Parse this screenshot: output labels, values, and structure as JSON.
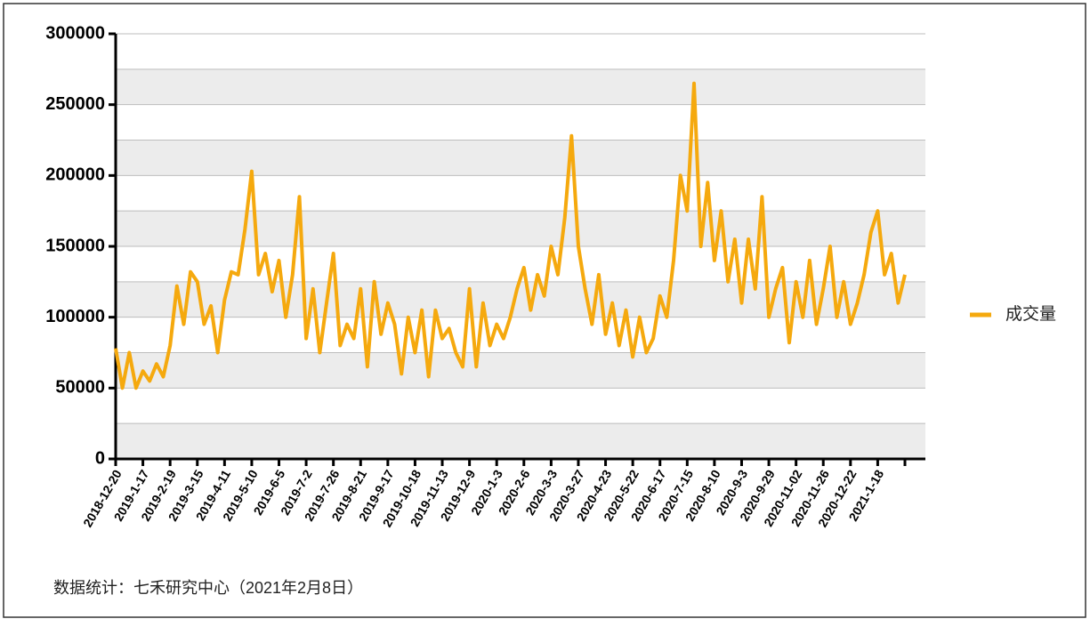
{
  "chart_data": {
    "type": "line",
    "footnote": "数据统计：七禾研究中心（2021年2月8日）",
    "categories": [
      "2018-12-20",
      null,
      null,
      null,
      "2019-1-17",
      null,
      null,
      null,
      "2019-2-19",
      null,
      null,
      null,
      "2019-3-15",
      null,
      null,
      null,
      "2019-4-11",
      null,
      null,
      null,
      "2019-5-10",
      null,
      null,
      null,
      "2019-6-5",
      null,
      null,
      null,
      "2019-7-2",
      null,
      null,
      null,
      "2019-7-26",
      null,
      null,
      null,
      "2019-8-21",
      null,
      null,
      null,
      "2019-9-17",
      null,
      null,
      null,
      "2019-10-18",
      null,
      null,
      null,
      "2019-11-13",
      null,
      null,
      null,
      "2019-12-9",
      null,
      null,
      null,
      "2020-1-3",
      null,
      null,
      null,
      "2020-2-6",
      null,
      null,
      null,
      "2020-3-3",
      null,
      null,
      null,
      "2020-3-27",
      null,
      null,
      null,
      "2020-4-23",
      null,
      null,
      null,
      "2020-5-22",
      null,
      null,
      null,
      "2020-6-17",
      null,
      null,
      null,
      "2020-7-15",
      null,
      null,
      null,
      "2020-8-10",
      null,
      null,
      null,
      "2020-9-3",
      null,
      null,
      null,
      "2020-9-29",
      null,
      null,
      null,
      "2020-11-02",
      null,
      null,
      null,
      "2020-11-26",
      null,
      null,
      null,
      "2020-12-22",
      null,
      null,
      null,
      "2021-1-18",
      null,
      null,
      null,
      null
    ],
    "series": [
      {
        "name": "成交量",
        "color": "#f5a90e",
        "values": [
          78000,
          50000,
          75000,
          50000,
          62000,
          55000,
          67000,
          58000,
          80000,
          122000,
          95000,
          132000,
          125000,
          95000,
          108000,
          75000,
          112000,
          132000,
          130000,
          162000,
          203000,
          130000,
          145000,
          118000,
          140000,
          100000,
          130000,
          185000,
          85000,
          120000,
          75000,
          110000,
          145000,
          80000,
          95000,
          85000,
          120000,
          65000,
          125000,
          88000,
          110000,
          95000,
          60000,
          100000,
          75000,
          105000,
          58000,
          105000,
          85000,
          92000,
          75000,
          65000,
          120000,
          65000,
          110000,
          80000,
          95000,
          85000,
          100000,
          120000,
          135000,
          105000,
          130000,
          115000,
          150000,
          130000,
          170000,
          228000,
          150000,
          120000,
          95000,
          130000,
          88000,
          110000,
          80000,
          105000,
          72000,
          100000,
          75000,
          85000,
          115000,
          100000,
          140000,
          200000,
          175000,
          265000,
          150000,
          195000,
          140000,
          175000,
          125000,
          155000,
          110000,
          155000,
          120000,
          185000,
          100000,
          120000,
          135000,
          82000,
          125000,
          100000,
          140000,
          95000,
          120000,
          150000,
          100000,
          125000,
          95000,
          110000,
          130000,
          160000,
          175000,
          130000,
          145000,
          110000,
          130000
        ]
      }
    ],
    "ylim": [
      0,
      300000
    ],
    "yticks": [
      0,
      50000,
      100000,
      150000,
      200000,
      250000,
      300000
    ],
    "grid": true,
    "legend": "right"
  }
}
